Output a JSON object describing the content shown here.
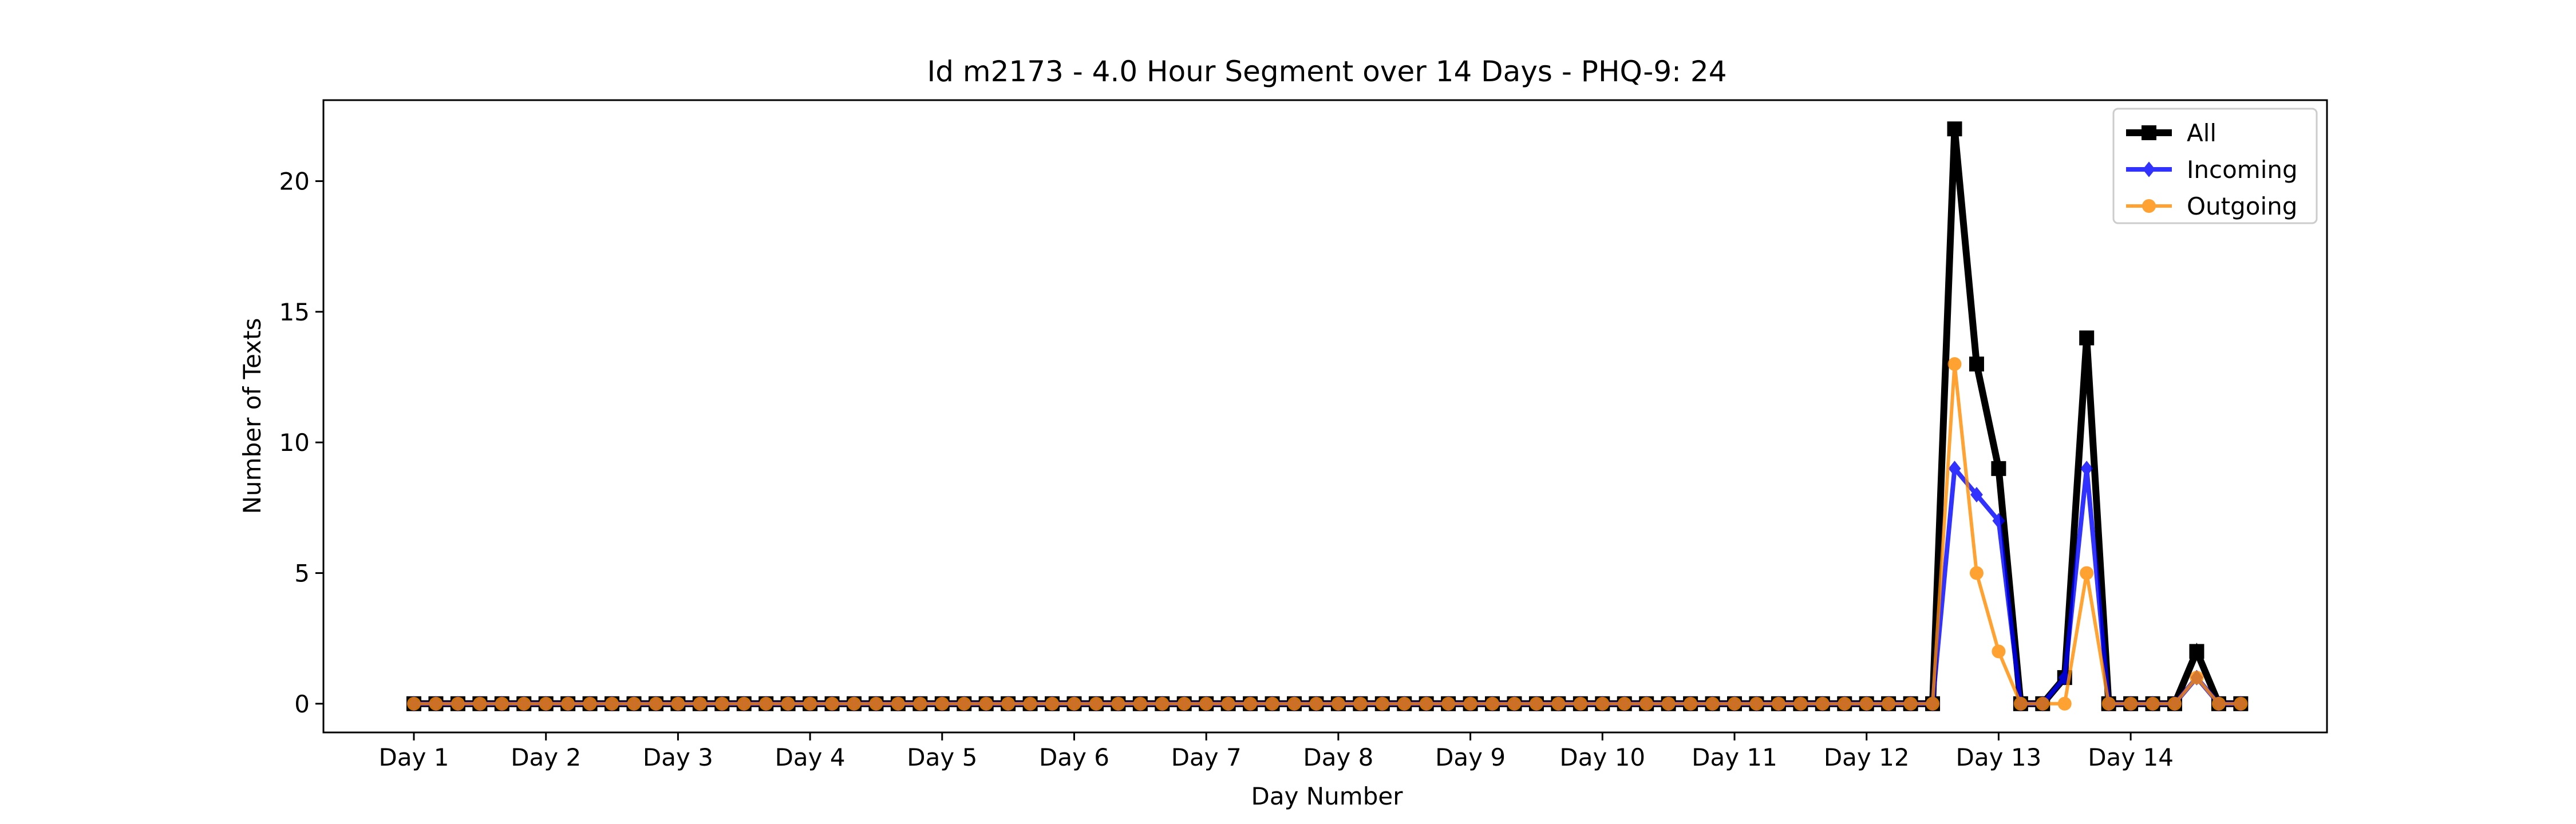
{
  "chart_data": {
    "type": "line",
    "title": "Id m2173 - 4.0 Hour Segment over 14 Days - PHQ-9: 24",
    "xlabel": "Day Number",
    "ylabel": "Number of Texts",
    "x_tick_labels": [
      "Day 1",
      "Day 2",
      "Day 3",
      "Day 4",
      "Day 5",
      "Day 6",
      "Day 7",
      "Day 8",
      "Day 9",
      "Day 10",
      "Day 11",
      "Day 12",
      "Day 13",
      "Day 14"
    ],
    "segments_per_day": 6,
    "y_ticks": [
      0,
      5,
      10,
      15,
      20
    ],
    "ylim": [
      -1.1,
      23.1
    ],
    "grid": false,
    "legend_position": "top-right",
    "series": [
      {
        "name": "All",
        "color": "#000000",
        "marker": "square",
        "values": [
          0,
          0,
          0,
          0,
          0,
          0,
          0,
          0,
          0,
          0,
          0,
          0,
          0,
          0,
          0,
          0,
          0,
          0,
          0,
          0,
          0,
          0,
          0,
          0,
          0,
          0,
          0,
          0,
          0,
          0,
          0,
          0,
          0,
          0,
          0,
          0,
          0,
          0,
          0,
          0,
          0,
          0,
          0,
          0,
          0,
          0,
          0,
          0,
          0,
          0,
          0,
          0,
          0,
          0,
          0,
          0,
          0,
          0,
          0,
          0,
          0,
          0,
          0,
          0,
          0,
          0,
          0,
          0,
          0,
          0,
          22,
          13,
          9,
          0,
          0,
          1,
          14,
          0,
          0,
          0,
          0,
          2,
          0,
          0
        ]
      },
      {
        "name": "Incoming",
        "color": "#0000ff",
        "marker": "diamond",
        "values": [
          0,
          0,
          0,
          0,
          0,
          0,
          0,
          0,
          0,
          0,
          0,
          0,
          0,
          0,
          0,
          0,
          0,
          0,
          0,
          0,
          0,
          0,
          0,
          0,
          0,
          0,
          0,
          0,
          0,
          0,
          0,
          0,
          0,
          0,
          0,
          0,
          0,
          0,
          0,
          0,
          0,
          0,
          0,
          0,
          0,
          0,
          0,
          0,
          0,
          0,
          0,
          0,
          0,
          0,
          0,
          0,
          0,
          0,
          0,
          0,
          0,
          0,
          0,
          0,
          0,
          0,
          0,
          0,
          0,
          0,
          9,
          8,
          7,
          0,
          0,
          1,
          9,
          0,
          0,
          0,
          0,
          1,
          0,
          0
        ]
      },
      {
        "name": "Outgoing",
        "color": "#ff8c00",
        "marker": "circle",
        "values": [
          0,
          0,
          0,
          0,
          0,
          0,
          0,
          0,
          0,
          0,
          0,
          0,
          0,
          0,
          0,
          0,
          0,
          0,
          0,
          0,
          0,
          0,
          0,
          0,
          0,
          0,
          0,
          0,
          0,
          0,
          0,
          0,
          0,
          0,
          0,
          0,
          0,
          0,
          0,
          0,
          0,
          0,
          0,
          0,
          0,
          0,
          0,
          0,
          0,
          0,
          0,
          0,
          0,
          0,
          0,
          0,
          0,
          0,
          0,
          0,
          0,
          0,
          0,
          0,
          0,
          0,
          0,
          0,
          0,
          0,
          13,
          5,
          2,
          0,
          0,
          0,
          5,
          0,
          0,
          0,
          0,
          1,
          0,
          0
        ]
      }
    ]
  }
}
